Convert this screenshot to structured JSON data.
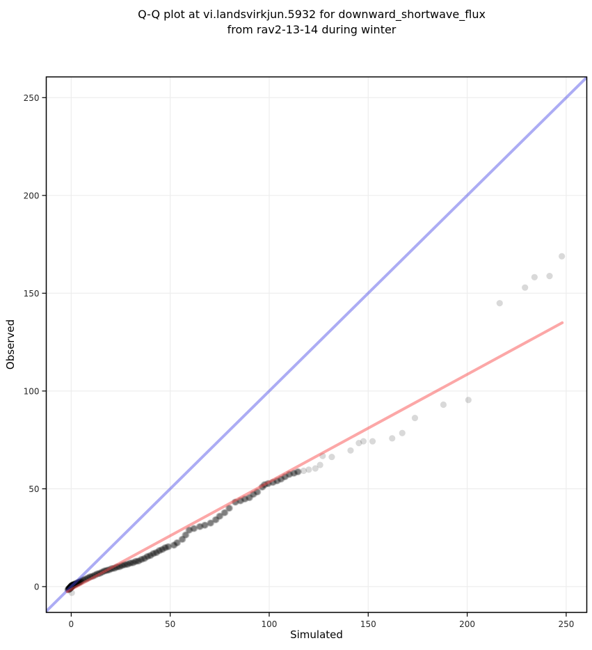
{
  "title": {
    "line1": "Q-Q plot at vi.landsvirkjun.5932 for downward_shortwave_flux",
    "line2": "from rav2-13-14 during winter"
  },
  "chart_data": {
    "type": "scatter",
    "title": "Q-Q plot at vi.landsvirkjun.5932 for downward_shortwave_flux from rav2-13-14 during winter",
    "xlabel": "Simulated",
    "ylabel": "Observed",
    "xlim": [
      -12.6,
      260.4
    ],
    "ylim": [
      -13.2,
      260.6
    ],
    "xticks": [
      0,
      50,
      100,
      150,
      200,
      250
    ],
    "yticks": [
      0,
      50,
      100,
      150,
      200,
      250
    ],
    "grid": true,
    "grid_color": "#ededed",
    "identity_line": {
      "name": "1:1 line",
      "x1": -12.6,
      "y1": -12.6,
      "x2": 260.4,
      "y2": 260.4,
      "color": "rgba(70,70,230,0.45)",
      "width": 4
    },
    "regression_line": {
      "name": "fit line",
      "x1": -2,
      "y1": -2.6,
      "x2": 248,
      "y2": 134.9,
      "color": "rgba(250,80,80,0.5)",
      "width": 4
    },
    "point_style": {
      "radius": 4.6,
      "color": "#000000",
      "opacity": 0.13,
      "overdraw_offsets": [
        [
          0,
          0
        ],
        [
          0.4,
          0.15
        ],
        [
          -0.4,
          -0.15
        ],
        [
          0.2,
          -0.25
        ],
        [
          -0.2,
          0.25
        ]
      ]
    },
    "dense_points": [
      [
        -1.5,
        -1.6
      ],
      [
        -1.3,
        -1.3
      ],
      [
        -1.1,
        -1.2
      ],
      [
        -0.9,
        -1.0
      ],
      [
        -0.8,
        -0.9
      ],
      [
        -0.7,
        -0.8
      ],
      [
        -0.6,
        -0.7
      ],
      [
        -0.5,
        -0.6
      ],
      [
        -0.4,
        -0.5
      ],
      [
        -0.3,
        -0.4
      ],
      [
        -0.2,
        -0.3
      ],
      [
        -0.1,
        -0.2
      ],
      [
        0,
        -0.1
      ],
      [
        0,
        0
      ],
      [
        0.1,
        0.1
      ],
      [
        0.2,
        0.2
      ],
      [
        0.3,
        0.3
      ],
      [
        0.4,
        0.4
      ],
      [
        0.5,
        0.5
      ],
      [
        0.6,
        0.6
      ],
      [
        0.8,
        0.7
      ],
      [
        1.0,
        0.8
      ],
      [
        1.2,
        0.9
      ],
      [
        1.4,
        1.0
      ],
      [
        1.7,
        1.1
      ],
      [
        2.0,
        1.3
      ],
      [
        2.3,
        1.4
      ],
      [
        2.7,
        1.6
      ],
      [
        3.1,
        1.8
      ],
      [
        3.5,
        2.0
      ],
      [
        4.0,
        2.2
      ],
      [
        4.5,
        2.5
      ],
      [
        5.0,
        2.8
      ],
      [
        6.0,
        3.4
      ],
      [
        7.2,
        3.8
      ],
      [
        8.4,
        4.4
      ],
      [
        9.6,
        5.0
      ],
      [
        10.8,
        5.3
      ],
      [
        12.0,
        5.9
      ],
      [
        13.2,
        6.5
      ],
      [
        14.4,
        6.8
      ],
      [
        15.6,
        7.4
      ],
      [
        16.8,
        8.0
      ],
      [
        18.0,
        8.3
      ],
      [
        19.2,
        8.6
      ],
      [
        20.5,
        9.2
      ],
      [
        21.8,
        9.4
      ],
      [
        23.1,
        10.0
      ],
      [
        24.4,
        10.2
      ],
      [
        25.7,
        10.8
      ],
      [
        27.0,
        11.2
      ],
      [
        28.4,
        11.4
      ],
      [
        29.8,
        12.0
      ],
      [
        31.2,
        12.2
      ],
      [
        32.6,
        12.9
      ],
      [
        34.0,
        13.1
      ],
      [
        35.5,
        13.9
      ],
      [
        37.0,
        14.4
      ],
      [
        38.5,
        15.4
      ],
      [
        40.0,
        15.9
      ],
      [
        41.5,
        16.9
      ],
      [
        43.0,
        17.4
      ],
      [
        44.5,
        18.4
      ],
      [
        46.0,
        19.0
      ],
      [
        47.5,
        19.9
      ],
      [
        49.0,
        20.4
      ],
      [
        51.9,
        21.2
      ],
      [
        53.5,
        22.4
      ],
      [
        56.1,
        24.2
      ],
      [
        57.8,
        26.4
      ],
      [
        59.6,
        28.9
      ],
      [
        62.0,
        29.7
      ],
      [
        65.0,
        30.7
      ],
      [
        67.5,
        31.4
      ],
      [
        70.4,
        32.5
      ],
      [
        73.0,
        34.2
      ],
      [
        75.0,
        36.0
      ],
      [
        77.5,
        37.8
      ],
      [
        79.8,
        40.1
      ],
      [
        82.9,
        43.2
      ],
      [
        85.5,
        43.9
      ],
      [
        87.7,
        44.8
      ],
      [
        90.0,
        45.5
      ],
      [
        92.0,
        47.2
      ],
      [
        94.0,
        48.4
      ],
      [
        96.5,
        50.9
      ],
      [
        97.7,
        52.1
      ],
      [
        99.5,
        52.7
      ],
      [
        101.9,
        53.3
      ],
      [
        104.0,
        54.1
      ],
      [
        106.0,
        55.0
      ],
      [
        108.0,
        56.2
      ],
      [
        110.2,
        57.4
      ],
      [
        112.5,
        58.0
      ],
      [
        114.5,
        58.7
      ]
    ],
    "light_points": [
      [
        0.3,
        -3.2
      ],
      [
        117.4,
        59.2
      ],
      [
        120.0,
        59.8
      ],
      [
        123.3,
        60.4
      ],
      [
        125.7,
        62.2
      ],
      [
        127.0,
        66.8
      ],
      [
        131.6,
        66.3
      ],
      [
        141.1,
        69.6
      ],
      [
        145.3,
        73.4
      ],
      [
        147.6,
        74.3
      ],
      [
        152.2,
        74.3
      ],
      [
        162.1,
        75.8
      ],
      [
        167.2,
        78.5
      ],
      [
        173.6,
        86.2
      ],
      [
        188.0,
        93.0
      ],
      [
        200.6,
        95.4
      ],
      [
        216.4,
        144.9
      ],
      [
        229.2,
        152.9
      ],
      [
        234.0,
        158.2
      ],
      [
        241.6,
        158.8
      ],
      [
        247.8,
        168.9
      ]
    ]
  }
}
